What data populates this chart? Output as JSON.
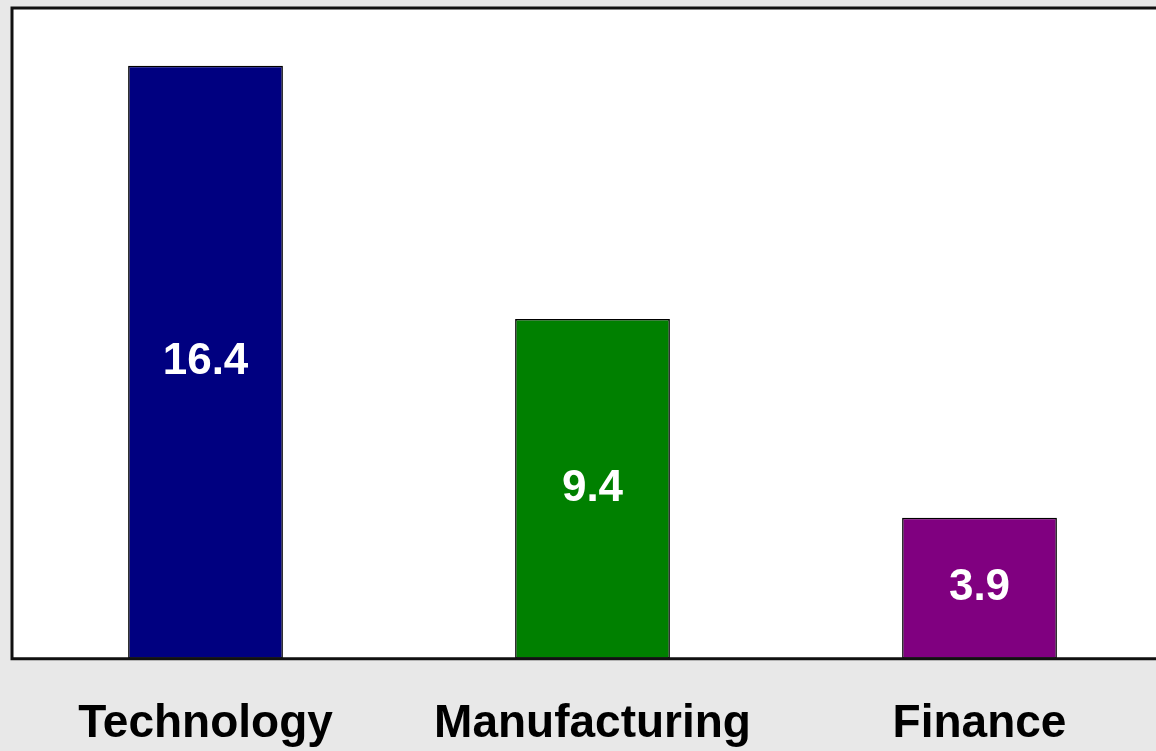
{
  "chart_data": {
    "type": "bar",
    "categories": [
      "Technology",
      "Manufacturing",
      "Finance"
    ],
    "values": [
      16.4,
      9.4,
      3.9
    ],
    "colors": [
      "#000080",
      "#008000",
      "#800080"
    ],
    "ylim": [
      0,
      18
    ],
    "data_labels": true,
    "tick_labels": "x"
  }
}
